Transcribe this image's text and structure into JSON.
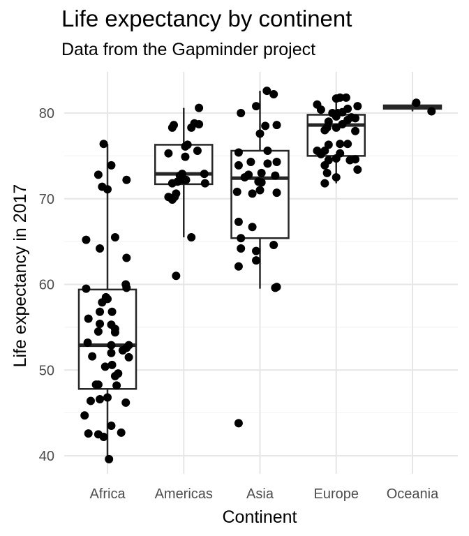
{
  "chart_data": {
    "type": "box",
    "title": "Life expectancy by continent",
    "subtitle": "Data from the Gapminder project",
    "xlabel": "Continent",
    "ylabel": "Life expectancy in 2017",
    "ylim": [
      38,
      85
    ],
    "y_ticks": [
      40,
      50,
      60,
      70,
      80
    ],
    "grid": true,
    "categories": [
      "Africa",
      "Americas",
      "Asia",
      "Europe",
      "Oceania"
    ],
    "boxes": [
      {
        "category": "Africa",
        "q1": 47.8,
        "median": 52.9,
        "q3": 59.4,
        "whisker_low": 39.6,
        "whisker_high": 76.4
      },
      {
        "category": "Americas",
        "q1": 71.7,
        "median": 72.9,
        "q3": 76.3,
        "whisker_low": 65.5,
        "whisker_high": 80.6
      },
      {
        "category": "Asia",
        "q1": 65.4,
        "median": 72.4,
        "q3": 75.6,
        "whisker_low": 59.5,
        "whisker_high": 82.6
      },
      {
        "category": "Europe",
        "q1": 75.0,
        "median": 78.6,
        "q3": 79.8,
        "whisker_low": 71.8,
        "whisker_high": 81.8
      },
      {
        "category": "Oceania",
        "q1": 80.5,
        "median": 80.7,
        "q3": 80.9,
        "whisker_low": 80.2,
        "whisker_high": 81.2
      }
    ],
    "points": {
      "Africa": [
        [
          -0.3,
          44.7
        ],
        [
          -0.25,
          42.6
        ],
        [
          -0.12,
          42.5
        ],
        [
          -0.05,
          42.2
        ],
        [
          0.02,
          39.6
        ],
        [
          0.18,
          42.7
        ],
        [
          0.05,
          43.5
        ],
        [
          -0.22,
          46.4
        ],
        [
          -0.1,
          46.6
        ],
        [
          0.0,
          46.8
        ],
        [
          0.24,
          46.2
        ],
        [
          -0.15,
          48.3
        ],
        [
          -0.12,
          48.3
        ],
        [
          0.12,
          48.2
        ],
        [
          0.1,
          49.3
        ],
        [
          0.14,
          49.6
        ],
        [
          -0.03,
          50.4
        ],
        [
          0.06,
          50.6
        ],
        [
          0.28,
          51.5
        ],
        [
          -0.2,
          51.6
        ],
        [
          0.05,
          52.0
        ],
        [
          0.2,
          52.3
        ],
        [
          0.25,
          52.6
        ],
        [
          0.28,
          52.9
        ],
        [
          0.05,
          52.9
        ],
        [
          -0.26,
          53.2
        ],
        [
          0.1,
          54.4
        ],
        [
          0.1,
          54.8
        ],
        [
          -0.12,
          54.5
        ],
        [
          -0.1,
          55.4
        ],
        [
          -0.25,
          56.0
        ],
        [
          0.05,
          55.3
        ],
        [
          -0.1,
          56.8
        ],
        [
          0.06,
          56.8
        ],
        [
          -0.07,
          57.9
        ],
        [
          0.0,
          58.3
        ],
        [
          -0.02,
          58.5
        ],
        [
          -0.28,
          59.5
        ],
        [
          0.25,
          59.6
        ],
        [
          0.24,
          60.0
        ],
        [
          0.25,
          63.1
        ],
        [
          -0.28,
          65.2
        ],
        [
          -0.1,
          64.2
        ],
        [
          0.1,
          65.5
        ],
        [
          -0.07,
          71.4
        ],
        [
          0.0,
          71.1
        ],
        [
          0.25,
          72.2
        ],
        [
          -0.12,
          72.8
        ],
        [
          0.05,
          73.9
        ],
        [
          -0.05,
          76.4
        ]
      ],
      "Americas": [
        [
          -0.1,
          61.0
        ],
        [
          0.1,
          65.5
        ],
        [
          -0.2,
          70.2
        ],
        [
          -0.15,
          69.9
        ],
        [
          -0.12,
          70.2
        ],
        [
          -0.1,
          70.6
        ],
        [
          -0.15,
          71.8
        ],
        [
          -0.08,
          72.0
        ],
        [
          0.0,
          72.2
        ],
        [
          0.03,
          72.2
        ],
        [
          0.28,
          71.8
        ],
        [
          -0.05,
          72.7
        ],
        [
          -0.02,
          72.9
        ],
        [
          0.27,
          72.9
        ],
        [
          -0.2,
          75.3
        ],
        [
          0.02,
          74.9
        ],
        [
          0.18,
          75.6
        ],
        [
          0.02,
          76.1
        ],
        [
          0.05,
          76.3
        ],
        [
          0.1,
          78.3
        ],
        [
          -0.15,
          78.3
        ],
        [
          -0.13,
          78.6
        ],
        [
          0.14,
          78.8
        ],
        [
          0.2,
          78.7
        ],
        [
          0.2,
          80.6
        ]
      ],
      "Asia": [
        [
          -0.28,
          43.8
        ],
        [
          -0.28,
          62.1
        ],
        [
          -0.25,
          64.2
        ],
        [
          -0.05,
          62.8
        ],
        [
          -0.05,
          63.9
        ],
        [
          0.18,
          64.6
        ],
        [
          0.2,
          59.6
        ],
        [
          0.22,
          59.7
        ],
        [
          -0.25,
          65.4
        ],
        [
          -0.28,
          67.3
        ],
        [
          -0.1,
          66.7
        ],
        [
          -0.3,
          70.8
        ],
        [
          -0.1,
          70.6
        ],
        [
          0.22,
          70.7
        ],
        [
          0.0,
          71.0
        ],
        [
          -0.02,
          72.0
        ],
        [
          0.02,
          71.9
        ],
        [
          -0.2,
          72.5
        ],
        [
          -0.15,
          72.8
        ],
        [
          0.02,
          73.0
        ],
        [
          0.2,
          72.7
        ],
        [
          -0.28,
          73.9
        ],
        [
          -0.12,
          74.3
        ],
        [
          0.1,
          74.1
        ],
        [
          0.22,
          74.3
        ],
        [
          0.1,
          75.6
        ],
        [
          -0.28,
          75.4
        ],
        [
          0.0,
          77.6
        ],
        [
          0.22,
          78.6
        ],
        [
          0.07,
          78.5
        ],
        [
          -0.25,
          80.0
        ],
        [
          -0.05,
          80.8
        ],
        [
          0.18,
          82.2
        ],
        [
          0.09,
          82.6
        ]
      ],
      "Europe": [
        [
          -0.15,
          71.8
        ],
        [
          0.0,
          72.5
        ],
        [
          -0.12,
          73.0
        ],
        [
          0.28,
          73.4
        ],
        [
          -0.15,
          73.9
        ],
        [
          -0.1,
          74.5
        ],
        [
          0.0,
          74.7
        ],
        [
          0.18,
          74.5
        ],
        [
          0.25,
          74.6
        ],
        [
          -0.2,
          75.2
        ],
        [
          -0.25,
          75.6
        ],
        [
          -0.15,
          75.6
        ],
        [
          0.05,
          75.3
        ],
        [
          -0.1,
          76.3
        ],
        [
          0.05,
          76.4
        ],
        [
          0.15,
          76.4
        ],
        [
          0.25,
          77.9
        ],
        [
          -0.15,
          78.0
        ],
        [
          -0.12,
          78.3
        ],
        [
          0.0,
          78.3
        ],
        [
          0.08,
          78.7
        ],
        [
          -0.1,
          79.0
        ],
        [
          0.15,
          79.2
        ],
        [
          0.2,
          79.5
        ],
        [
          0.25,
          79.4
        ],
        [
          0.0,
          79.6
        ],
        [
          -0.05,
          80.0
        ],
        [
          0.02,
          80.0
        ],
        [
          0.08,
          80.1
        ],
        [
          0.15,
          80.5
        ],
        [
          -0.2,
          80.4
        ],
        [
          -0.25,
          81.0
        ],
        [
          0.0,
          81.7
        ],
        [
          0.05,
          81.8
        ],
        [
          0.13,
          81.8
        ],
        [
          0.28,
          80.8
        ]
      ],
      "Oceania": [
        [
          0.05,
          81.2
        ],
        [
          0.25,
          80.2
        ]
      ]
    }
  }
}
